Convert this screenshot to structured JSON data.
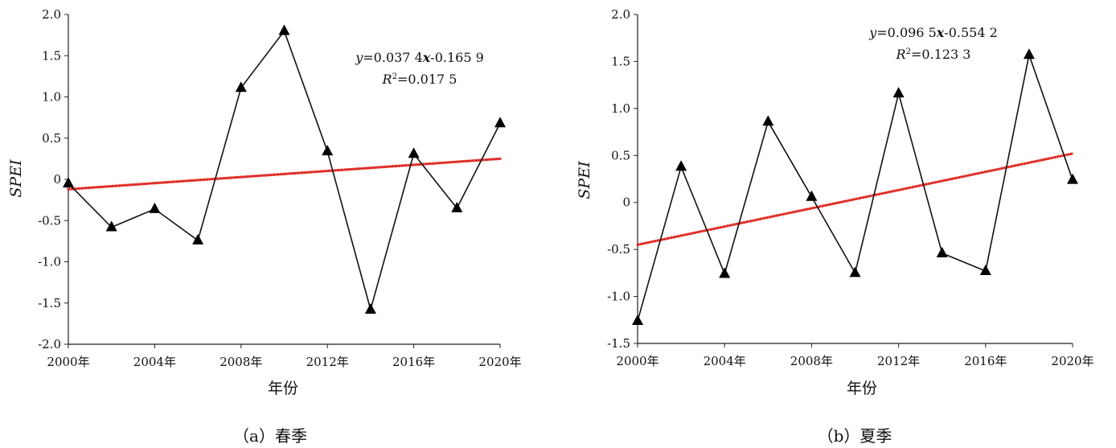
{
  "chart_data": [
    {
      "type": "line",
      "x": [
        2000,
        2002,
        2004,
        2006,
        2008,
        2010,
        2012,
        2014,
        2016,
        2018,
        2020
      ],
      "y": [
        -0.05,
        -0.58,
        -0.36,
        -0.74,
        1.11,
        1.8,
        0.34,
        -1.58,
        0.31,
        -0.35,
        0.68
      ],
      "xlim": [
        2000,
        2020
      ],
      "ylim": [
        -2.0,
        2.0
      ],
      "xticks": [
        2000,
        2004,
        2008,
        2012,
        2016,
        2020
      ],
      "xtick_labels": [
        "2000年",
        "2004年",
        "2008年",
        "2012年",
        "2016年",
        "2020年"
      ],
      "yticks": [
        2.0,
        1.5,
        1.0,
        0.5,
        0,
        -0.5,
        -1.0,
        -1.5,
        -2.0
      ],
      "ytick_labels": [
        "2.0",
        "1.5",
        "1.0",
        "0.5",
        "0",
        "-0.5",
        "-1.0",
        "-1.5",
        "-2.0"
      ],
      "xlabel": "年份",
      "ylabel": "SPEI",
      "trend": {
        "start": [
          2000,
          -0.12
        ],
        "end": [
          2020,
          0.25
        ],
        "color": "#e0302a"
      },
      "equation": {
        "line1": {
          "y": "y",
          "eq1": "=0.037 4",
          "x": "x",
          "eq2": "-0.165 9"
        },
        "line2": {
          "R": "R",
          "sup": "2",
          "val": "=0.017 5"
        }
      },
      "caption": "（a）春季"
    },
    {
      "type": "line",
      "x": [
        2000,
        2002,
        2004,
        2006,
        2008,
        2010,
        2012,
        2014,
        2016,
        2018,
        2020
      ],
      "y": [
        -1.26,
        0.38,
        -0.76,
        0.86,
        0.06,
        -0.75,
        1.16,
        -0.54,
        -0.73,
        1.57,
        0.24
      ],
      "xlim": [
        2000,
        2020
      ],
      "ylim": [
        -1.5,
        2.0
      ],
      "xticks": [
        2000,
        2004,
        2008,
        2012,
        2016,
        2020
      ],
      "xtick_labels": [
        "2000年",
        "2004年",
        "2008年",
        "2012年",
        "2016年",
        "2020年"
      ],
      "yticks": [
        2.0,
        1.5,
        1.0,
        0.5,
        0,
        -0.5,
        -1.0,
        -1.5
      ],
      "ytick_labels": [
        "2.0",
        "1.5",
        "1.0",
        "0.5",
        "0",
        "-0.5",
        "-1.0",
        "-1.5"
      ],
      "xlabel": "年份",
      "ylabel": "SPEI",
      "trend": {
        "start": [
          2000,
          -0.45
        ],
        "end": [
          2020,
          0.52
        ],
        "color": "#e0302a"
      },
      "equation": {
        "line1": {
          "y": "y",
          "eq1": "=0.096 5",
          "x": "x",
          "eq2": "-0.554 2"
        },
        "line2": {
          "R": "R",
          "sup": "2",
          "val": "=0.123 3"
        }
      },
      "caption": "（b）夏季"
    }
  ]
}
